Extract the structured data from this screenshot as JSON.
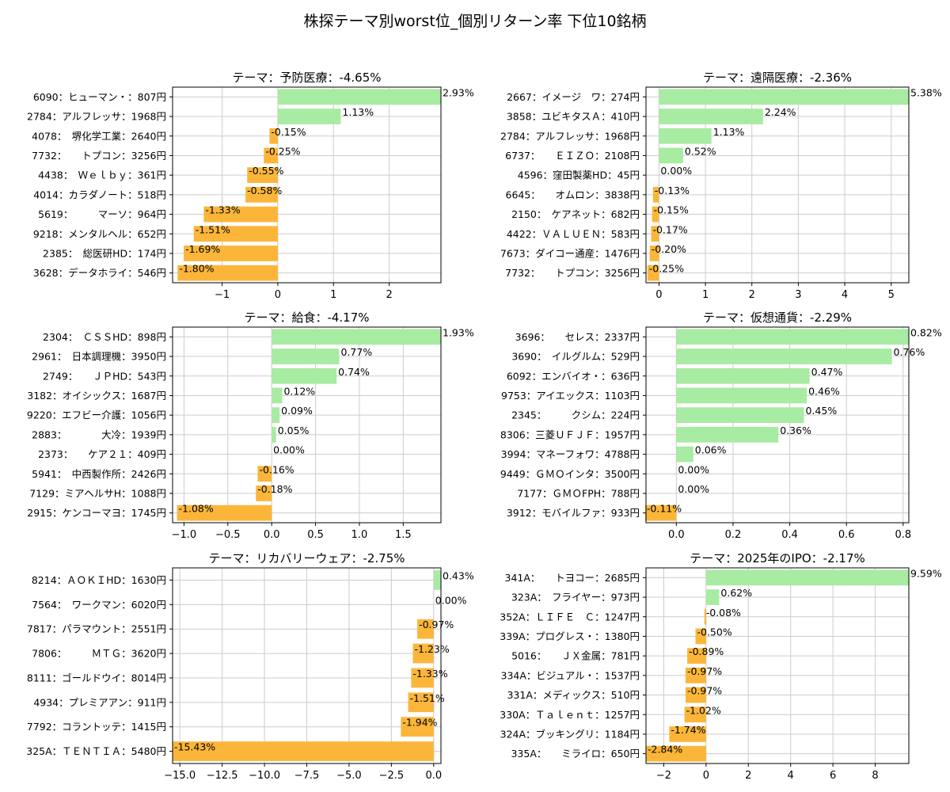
{
  "suptitle": "株探テーマ別worst位_個別リターン率 下位10銘柄",
  "colors": {
    "positive": "#a8eba2",
    "negative": "#fbb63a",
    "grid": "#cccccc",
    "axis": "#000000"
  },
  "chart_data": [
    {
      "type": "bar",
      "orientation": "horizontal",
      "title": "テーマ：予防医療：-4.65%",
      "categories": [
        "6090：ヒューマン・：807円",
        "2784：アルフレッサ：1968円",
        "4078：　堺化学工業：2640円",
        "7732：　　トプコン：3256円",
        "4438：　Ｗｅｌｂｙ：361円",
        "4014：カラダノート：518円",
        "5619：　　　マーソ：964円",
        "9218：メンタルヘル：652円",
        "2385：　総医研HD：174円",
        "3628：データホライ：546円"
      ],
      "values": [
        2.93,
        1.13,
        -0.15,
        -0.25,
        -0.55,
        -0.58,
        -1.33,
        -1.51,
        -1.69,
        -1.8
      ],
      "labels": [
        "2.93%",
        "1.13%",
        "-0.15%",
        "-0.25%",
        "-0.55%",
        "-0.58%",
        "-1.33%",
        "-1.51%",
        "-1.69%",
        "-1.80%"
      ],
      "xlim": [
        -1.89,
        2.93
      ],
      "xticks": [
        -1,
        0,
        1,
        2
      ],
      "xtick_labels": [
        "−1",
        "0",
        "1",
        "2"
      ],
      "grid": true
    },
    {
      "type": "bar",
      "orientation": "horizontal",
      "title": "テーマ：遠隔医療：-2.36%",
      "categories": [
        "2667：イメージ　ワ：274円",
        "3858：ユビキタスＡ：410円",
        "2784：アルフレッサ：1968円",
        "6737：　　ＥＩＺＯ：2108円",
        "4596：窪田製薬HD：45円",
        "6645：　　オムロン：3838円",
        "2150：　ケアネット：682円",
        "4422：ＶＡＬＵＥＮ：583円",
        "7673：ダイコー通産：1476円",
        "7732：　　トプコン：3256円"
      ],
      "values": [
        5.38,
        2.24,
        1.13,
        0.52,
        0.0,
        -0.13,
        -0.15,
        -0.17,
        -0.2,
        -0.25
      ],
      "labels": [
        "5.38%",
        "2.24%",
        "1.13%",
        "0.52%",
        "0.00%",
        "-0.13%",
        "-0.15%",
        "-0.17%",
        "-0.20%",
        "-0.25%"
      ],
      "xlim": [
        -0.28,
        5.38
      ],
      "xticks": [
        0,
        1,
        2,
        3,
        4,
        5
      ],
      "xtick_labels": [
        "0",
        "1",
        "2",
        "3",
        "4",
        "5"
      ],
      "grid": true
    },
    {
      "type": "bar",
      "orientation": "horizontal",
      "title": "テーマ：給食：-4.17%",
      "categories": [
        "2304：　ＣＳＳHD：898円",
        "2961：　日本調理機：3950円",
        "2749：　　ＪＰHD：543円",
        "3182：オイシックス：1687円",
        "9220：エフビー介護：1056円",
        "2883：　　　　大冷：1939円",
        "2373：　　ケア２１：409円",
        "5941：　中西製作所：2426円",
        "7129：ミアヘルサH：1088円",
        "2915：ケンコーマヨ：1745円"
      ],
      "values": [
        1.93,
        0.77,
        0.74,
        0.12,
        0.09,
        0.05,
        0.0,
        -0.16,
        -0.18,
        -1.08
      ],
      "labels": [
        "1.93%",
        "0.77%",
        "0.74%",
        "0.12%",
        "0.09%",
        "0.05%",
        "0.00%",
        "-0.16%",
        "-0.18%",
        "-1.08%"
      ],
      "xlim": [
        -1.13,
        1.93
      ],
      "xticks": [
        -1.0,
        -0.5,
        0.0,
        0.5,
        1.0,
        1.5
      ],
      "xtick_labels": [
        "−1.0",
        "−0.5",
        "0.0",
        "0.5",
        "1.0",
        "1.5"
      ],
      "grid": true
    },
    {
      "type": "bar",
      "orientation": "horizontal",
      "title": "テーマ：仮想通貨：-2.29%",
      "categories": [
        "3696：　　セレス：2337円",
        "3690：　イルグルム：529円",
        "6092：エンバイオ・：636円",
        "9753：アイエックス：1103円",
        "2345：　　　クシム：224円",
        "8306：三菱ＵＦＪＦ：1957円",
        "3994：マネーフォワ：4788円",
        "9449：ＧＭＯインタ：3500円",
        "7177：ＧＭＯFPH：788円",
        "3912：モバイルファ：933円"
      ],
      "values": [
        0.82,
        0.76,
        0.47,
        0.46,
        0.45,
        0.36,
        0.06,
        0.0,
        0.0,
        -0.11
      ],
      "labels": [
        "0.82%",
        "0.76%",
        "0.47%",
        "0.46%",
        "0.45%",
        "0.36%",
        "0.06%",
        "0.00%",
        "0.00%",
        "-0.11%"
      ],
      "xlim": [
        -0.107,
        0.82
      ],
      "xticks": [
        0.0,
        0.2,
        0.4,
        0.6,
        0.8
      ],
      "xtick_labels": [
        "0.0",
        "0.2",
        "0.4",
        "0.6",
        "0.8"
      ],
      "grid": true
    },
    {
      "type": "bar",
      "orientation": "horizontal",
      "title": "テーマ：リカバリーウェア：-2.75%",
      "categories": [
        "8214：ＡＯＫＩHD：1630円",
        "7564：　ワークマン：6020円",
        "7817：パラマウント：2551円",
        "7806：　　　ＭＴＧ：3620円",
        "8111：ゴールドウイ：8014円",
        "4934：プレミアアン：911円",
        "7792：コラントッテ：1415円",
        "325A：ＴＥＮＴＩＡ：5480円"
      ],
      "values": [
        0.43,
        0.0,
        -0.97,
        -1.23,
        -1.33,
        -1.51,
        -1.94,
        -15.43
      ],
      "labels": [
        "0.43%",
        "0.00%",
        "-0.97%",
        "-1.23%",
        "-1.33%",
        "-1.51%",
        "-1.94%",
        "-15.43%"
      ],
      "xlim": [
        -15.43,
        0.43
      ],
      "xticks": [
        -15.0,
        -12.5,
        -10.0,
        -7.5,
        -5.0,
        -2.5,
        0.0
      ],
      "xtick_labels": [
        "−15.0",
        "−12.5",
        "−10.0",
        "−7.5",
        "−5.0",
        "−2.5",
        "0.0"
      ],
      "grid": true
    },
    {
      "type": "bar",
      "orientation": "horizontal",
      "title": "テーマ：2025年のIPO：-2.17%",
      "categories": [
        "341A：　　トヨコー：2685円",
        "323A：　フライヤー：973円",
        "352A：ＬＩＦＥ　Ｃ：1247円",
        "339A：プログレス・：1380円",
        "5016：　　ＪＸ金属：781円",
        "334A：ビジュアル・：1537円",
        "331A：メディックス：510円",
        "330A：Ｔａｌｅｎｔ：1257円",
        "324A：ブッキングリ：1184円",
        "335A：　　ミライロ：650円"
      ],
      "values": [
        9.59,
        0.62,
        -0.08,
        -0.5,
        -0.89,
        -0.97,
        -0.97,
        -1.02,
        -1.74,
        -2.84
      ],
      "labels": [
        "9.59%",
        "0.62%",
        "-0.08%",
        "-0.50%",
        "-0.89%",
        "-0.97%",
        "-0.97%",
        "-1.02%",
        "-1.74%",
        "-2.84%"
      ],
      "xlim": [
        -2.84,
        9.59
      ],
      "xticks": [
        -2,
        0,
        2,
        4,
        6,
        8
      ],
      "xtick_labels": [
        "−2",
        "0",
        "2",
        "4",
        "6",
        "8"
      ],
      "grid": true
    }
  ]
}
